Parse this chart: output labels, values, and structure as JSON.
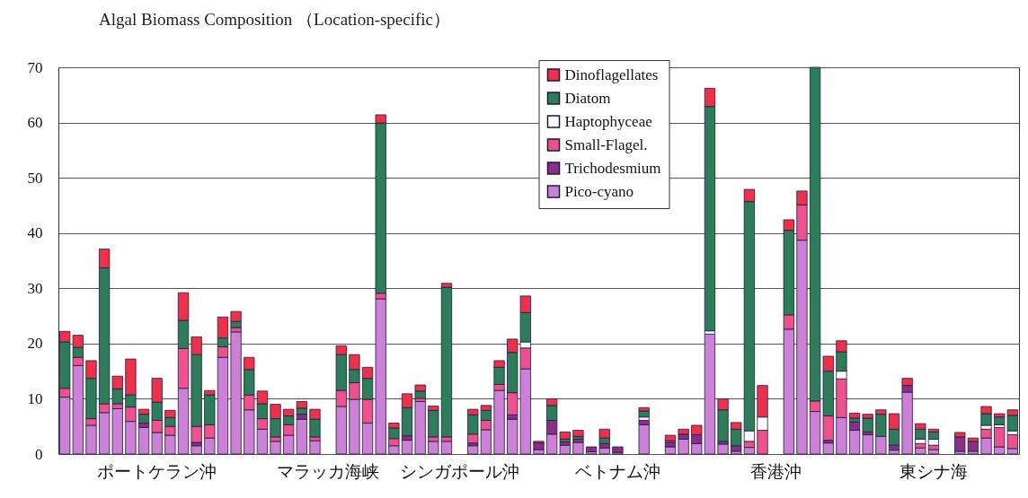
{
  "chart_data": {
    "type": "bar",
    "stacked": true,
    "title": "Algal  Biomass Composition （Location-specific）",
    "categories": [
      null,
      null,
      null,
      null,
      null,
      null,
      null,
      "ポートケラン沖",
      null,
      null,
      null,
      null,
      null,
      null,
      null,
      null,
      null,
      null,
      null,
      null,
      "マラッカ海峡",
      null,
      null,
      null,
      null,
      null,
      null,
      null,
      null,
      null,
      "シンガポール沖",
      null,
      null,
      null,
      null,
      null,
      null,
      null,
      null,
      null,
      null,
      null,
      "ベトナム沖",
      null,
      null,
      null,
      null,
      null,
      null,
      null,
      null,
      null,
      null,
      null,
      "香港沖",
      null,
      null,
      null,
      null,
      null,
      null,
      null,
      null,
      null,
      null,
      null,
      "東シナ海",
      null,
      null,
      null,
      null,
      null,
      null
    ],
    "series": [
      {
        "name": "Pico-cyano",
        "color": "#cc80d8",
        "values": [
          10.3,
          16,
          5.2,
          7.5,
          8.2,
          5.9,
          4.8,
          3.9,
          3.4,
          11.9,
          1.5,
          2.9,
          17.5,
          22.1,
          8,
          4.5,
          2.3,
          3.4,
          6.3,
          2.4,
          null,
          8.6,
          9.9,
          5.6,
          28.1,
          1.5,
          2.5,
          9.5,
          2.3,
          2.3,
          null,
          1.5,
          4.4,
          11.5,
          6.3,
          15.4,
          0.8,
          3.6,
          1.6,
          2.1,
          0.4,
          1.1,
          0.3,
          null,
          5.3,
          null,
          1.3,
          2.7,
          1.9,
          21.7,
          1.8,
          0.5,
          1.2,
          0,
          null,
          22.6,
          38.7,
          7.7,
          2,
          6.6,
          4.3,
          3.5,
          3.2,
          0.7,
          11.2,
          1.1,
          0.8,
          null,
          0.5,
          0.5,
          2.9,
          1.3,
          1
        ]
      },
      {
        "name": "Trichodesmium",
        "color": "#8a2e8a",
        "values": [
          0,
          0,
          0,
          0,
          0,
          0,
          0.8,
          0,
          0,
          0,
          0.6,
          0,
          0,
          0,
          0,
          0,
          0,
          0,
          0.9,
          0,
          null,
          0,
          0,
          0,
          0,
          0,
          0.8,
          0,
          0,
          0,
          null,
          0.5,
          0,
          0,
          0.8,
          0,
          1.2,
          2.5,
          0.6,
          0.6,
          0.9,
          0.8,
          1,
          null,
          0.8,
          null,
          0.8,
          0.9,
          1.6,
          0,
          0.5,
          1,
          0,
          0,
          null,
          0,
          0,
          0,
          0.5,
          0,
          1.5,
          0.5,
          0,
          0.9,
          1.2,
          0,
          0,
          null,
          2.6,
          1.8,
          0,
          0,
          0
        ]
      },
      {
        "name": "Small-Flagel.",
        "color": "#f0508c",
        "values": [
          1.6,
          1.5,
          1.2,
          1.6,
          0.9,
          2.6,
          0,
          2.2,
          1.6,
          7.2,
          2.9,
          2.4,
          1.9,
          0.8,
          2.7,
          1.9,
          0.8,
          1.9,
          0,
          0.7,
          null,
          2.9,
          3,
          4.3,
          1,
          1.3,
          0,
          0.6,
          0.8,
          0.8,
          null,
          1.6,
          1.7,
          1.1,
          4,
          3.8,
          0,
          0,
          0,
          0,
          0,
          0,
          0,
          null,
          0,
          null,
          0.3,
          0,
          0,
          0,
          0,
          0,
          1.1,
          4.3,
          null,
          2.6,
          6.4,
          1.9,
          4.4,
          7,
          0,
          0,
          0,
          0,
          0,
          0.8,
          0.8,
          null,
          0,
          0,
          1.6,
          3.5,
          2.5
        ]
      },
      {
        "name": "Haptophyceae",
        "color": "#fdfdfd",
        "values": [
          0,
          0,
          0,
          0,
          0,
          0,
          0,
          0,
          0,
          0,
          0,
          0,
          0,
          0,
          0,
          0,
          0,
          0,
          0,
          0,
          null,
          0,
          0,
          0,
          0,
          0,
          0,
          0,
          0,
          0,
          null,
          0,
          0,
          0,
          0,
          1.1,
          0,
          0,
          0,
          0,
          0,
          0,
          0,
          null,
          0.6,
          null,
          0,
          0,
          0,
          0.6,
          0,
          0,
          1.9,
          2.4,
          null,
          0,
          0,
          0,
          0,
          1.4,
          0,
          0,
          0,
          0,
          0,
          0.8,
          1.1,
          null,
          0,
          0,
          0.7,
          0.5,
          0.7
        ]
      },
      {
        "name": "Diatom",
        "color": "#2e7d5a",
        "values": [
          8.4,
          1.8,
          7.3,
          24.6,
          2.7,
          2.2,
          1.6,
          3.3,
          1.6,
          5.1,
          13,
          5.4,
          1.6,
          1.1,
          4.6,
          2.7,
          3.3,
          1.6,
          1.1,
          3.2,
          null,
          6.5,
          2.4,
          3.8,
          30.8,
          1.9,
          5.1,
          1.3,
          4.8,
          27.1,
          null,
          3.5,
          1.8,
          3.1,
          7.3,
          5.3,
          0,
          2.7,
          0.5,
          0.5,
          0,
          1,
          0,
          null,
          1.1,
          null,
          0,
          0,
          0,
          40.6,
          5.7,
          3,
          41.5,
          0,
          null,
          15.3,
          0,
          60.4,
          8.1,
          3.5,
          0.7,
          2.5,
          4,
          2.9,
          0,
          1.8,
          1.3,
          null,
          0,
          0,
          2.1,
          1.4,
          2.8
        ]
      },
      {
        "name": "Dinoflagellates",
        "color": "#f0304a",
        "values": [
          1.9,
          2.2,
          3.2,
          3.4,
          2.3,
          6.5,
          0.9,
          4.3,
          1.3,
          5,
          3.2,
          0.8,
          3.8,
          1.8,
          2.2,
          2.3,
          2.6,
          1.2,
          1.2,
          1.8,
          null,
          1.6,
          2.7,
          2,
          1.5,
          0.9,
          2.5,
          1.1,
          0.8,
          0.7,
          null,
          1,
          0.9,
          1.2,
          2.4,
          3,
          0.3,
          1.2,
          1.3,
          1.1,
          0,
          1.6,
          0,
          null,
          0.6,
          null,
          1,
          0.9,
          1.7,
          3.3,
          2,
          1.2,
          2.2,
          5.7,
          null,
          1.9,
          2.5,
          0,
          2.7,
          2,
          0.9,
          0.7,
          0.8,
          2.8,
          1.3,
          1,
          0.5,
          null,
          0.8,
          0.6,
          1.3,
          0.6,
          1
        ]
      }
    ],
    "ylim": [
      0,
      70
    ],
    "yticks": [
      0,
      10,
      20,
      30,
      40,
      50,
      60,
      70
    ],
    "grid": "y",
    "legend": "top"
  }
}
